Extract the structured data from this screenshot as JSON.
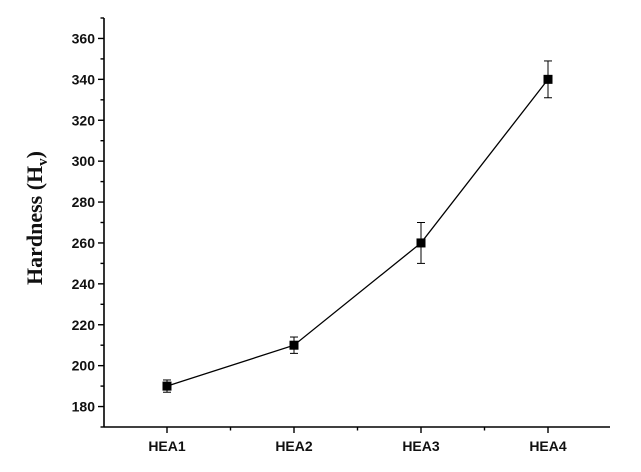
{
  "chart_data": {
    "type": "line",
    "categories": [
      "HEA1",
      "HEA2",
      "HEA3",
      "HEA4"
    ],
    "series": [
      {
        "values": [
          190,
          210,
          260,
          340
        ],
        "errors": [
          3,
          4,
          10,
          9
        ],
        "marker": "square",
        "color": "#000000"
      }
    ],
    "title": "",
    "xlabel": "",
    "ylabel": {
      "main": "Hardness (H",
      "subscript": "v",
      "close": ")"
    },
    "ylim": [
      170,
      370
    ],
    "yticks": [
      180,
      200,
      220,
      240,
      260,
      280,
      300,
      320,
      340,
      360
    ],
    "yticks_minor_step": 10,
    "grid": false,
    "legend": "none"
  }
}
